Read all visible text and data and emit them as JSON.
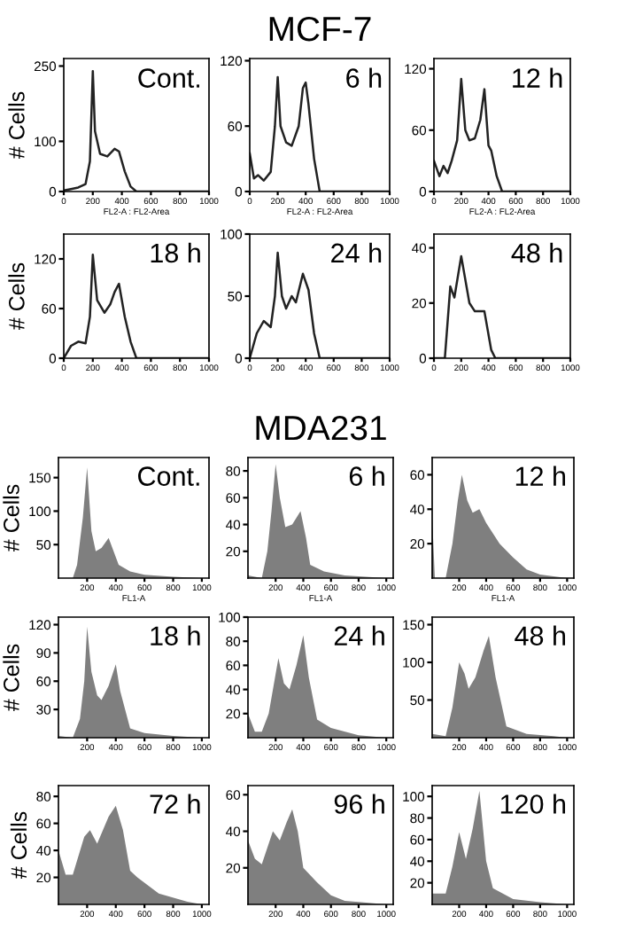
{
  "chart_data": [
    {
      "type": "line",
      "title": "Cont.",
      "ylabel": "# Cells",
      "xlabel": "FL2-A : FL2-Area",
      "color": "#222222",
      "x": [
        0,
        50,
        100,
        150,
        180,
        200,
        215,
        250,
        300,
        350,
        380,
        420,
        460,
        500,
        1000
      ],
      "values": [
        2,
        5,
        8,
        15,
        60,
        240,
        120,
        75,
        70,
        85,
        80,
        40,
        10,
        0,
        0
      ],
      "xlim": [
        0,
        1000
      ],
      "xticks": [
        0,
        200,
        400,
        600,
        800,
        1000
      ],
      "ylim": [
        0,
        265
      ],
      "yticks": [
        0,
        100,
        250
      ]
    },
    {
      "type": "line",
      "title": "6 h",
      "annotations": [
        "MCF-7"
      ],
      "xlabel": "FL2-A : FL2-Area",
      "color": "#222222",
      "x": [
        0,
        30,
        60,
        100,
        150,
        180,
        200,
        220,
        260,
        300,
        350,
        380,
        400,
        420,
        460,
        500,
        1000
      ],
      "values": [
        35,
        12,
        15,
        10,
        18,
        60,
        105,
        60,
        45,
        42,
        60,
        95,
        100,
        80,
        30,
        0,
        0
      ],
      "xlim": [
        0,
        1000
      ],
      "xticks": [
        0,
        200,
        400,
        600,
        800,
        1000
      ],
      "ylim": [
        0,
        122
      ],
      "yticks": [
        0,
        60,
        120
      ]
    },
    {
      "type": "line",
      "title": "12 h",
      "xlabel": "FL2-A : FL2-Area",
      "color": "#222222",
      "x": [
        0,
        40,
        70,
        100,
        130,
        170,
        200,
        230,
        260,
        300,
        340,
        370,
        400,
        420,
        460,
        500,
        1000
      ],
      "values": [
        30,
        15,
        25,
        18,
        30,
        50,
        110,
        60,
        50,
        52,
        70,
        100,
        45,
        40,
        15,
        0,
        0
      ],
      "xlim": [
        0,
        1000
      ],
      "xticks": [
        0,
        200,
        400,
        600,
        800,
        1000
      ],
      "ylim": [
        0,
        130
      ],
      "yticks": [
        0,
        60,
        120
      ]
    },
    {
      "type": "line",
      "title": "18 h",
      "ylabel": "# Cells",
      "color": "#222222",
      "x": [
        0,
        50,
        100,
        150,
        180,
        200,
        230,
        280,
        320,
        350,
        380,
        420,
        460,
        500,
        1000
      ],
      "values": [
        0,
        15,
        20,
        18,
        50,
        125,
        70,
        55,
        65,
        80,
        90,
        50,
        20,
        0,
        0
      ],
      "xlim": [
        0,
        1000
      ],
      "xticks": [
        0,
        200,
        400,
        600,
        800,
        1000
      ],
      "ylim": [
        0,
        150
      ],
      "yticks": [
        0,
        60,
        120
      ]
    },
    {
      "type": "line",
      "title": "24 h",
      "color": "#222222",
      "x": [
        0,
        50,
        100,
        150,
        180,
        200,
        230,
        260,
        300,
        330,
        380,
        420,
        460,
        500,
        1000
      ],
      "values": [
        0,
        20,
        30,
        25,
        50,
        85,
        50,
        40,
        50,
        45,
        68,
        55,
        20,
        0,
        0
      ],
      "xlim": [
        0,
        1000
      ],
      "xticks": [
        0,
        200,
        400,
        600,
        800,
        1000
      ],
      "ylim": [
        0,
        100
      ],
      "yticks": [
        0,
        50,
        100
      ]
    },
    {
      "type": "line",
      "title": "48 h",
      "color": "#222222",
      "x": [
        0,
        80,
        120,
        150,
        200,
        260,
        300,
        370,
        420,
        450,
        1000
      ],
      "values": [
        0,
        0,
        26,
        22,
        37,
        20,
        17,
        17,
        3,
        0,
        0
      ],
      "xlim": [
        0,
        1000
      ],
      "xticks": [
        0,
        200,
        400,
        600,
        800,
        1000
      ],
      "ylim": [
        0,
        45
      ],
      "yticks": [
        0,
        20,
        40
      ]
    },
    {
      "type": "area",
      "title": "Cont.",
      "ylabel": "# Cells",
      "xlabel": "FL1-A",
      "color": "#7f7f7f",
      "x": [
        0,
        100,
        130,
        170,
        200,
        230,
        260,
        300,
        350,
        420,
        500,
        600,
        800,
        1000
      ],
      "values": [
        0,
        0,
        20,
        90,
        165,
        70,
        40,
        45,
        60,
        20,
        10,
        5,
        2,
        0
      ],
      "xlim": [
        0,
        1050
      ],
      "xticks": [
        200,
        400,
        600,
        800,
        1000
      ],
      "ylim": [
        0,
        180
      ],
      "yticks": [
        50,
        100,
        150
      ]
    },
    {
      "type": "area",
      "title": "6 h",
      "annotations": [
        "MDA231"
      ],
      "xlabel": "FL1-A",
      "color": "#7f7f7f",
      "x": [
        0,
        100,
        140,
        170,
        200,
        230,
        270,
        320,
        380,
        420,
        450,
        550,
        700,
        1000
      ],
      "values": [
        2,
        0,
        20,
        50,
        85,
        60,
        38,
        40,
        50,
        30,
        10,
        5,
        2,
        0
      ],
      "xlim": [
        0,
        1050
      ],
      "xticks": [
        200,
        400,
        600,
        800,
        1000
      ],
      "ylim": [
        0,
        90
      ],
      "yticks": [
        20,
        40,
        60,
        80
      ]
    },
    {
      "type": "area",
      "title": "12 h",
      "xlabel": "FL1-A",
      "color": "#7f7f7f",
      "x": [
        0,
        20,
        100,
        150,
        190,
        220,
        260,
        300,
        350,
        400,
        500,
        600,
        700,
        800,
        1000
      ],
      "values": [
        35,
        0,
        0,
        20,
        45,
        60,
        45,
        38,
        40,
        32,
        20,
        12,
        5,
        2,
        0
      ],
      "xlim": [
        0,
        1050
      ],
      "xticks": [
        200,
        400,
        600,
        800,
        1000
      ],
      "ylim": [
        0,
        70
      ],
      "yticks": [
        20,
        40,
        60
      ]
    },
    {
      "type": "area",
      "title": "18 h",
      "ylabel": "# Cells",
      "color": "#7f7f7f",
      "x": [
        0,
        100,
        150,
        180,
        200,
        230,
        270,
        300,
        350,
        400,
        430,
        500,
        600,
        800,
        1000
      ],
      "values": [
        2,
        0,
        20,
        60,
        118,
        70,
        45,
        40,
        55,
        78,
        50,
        10,
        5,
        2,
        0
      ],
      "xlim": [
        0,
        1050
      ],
      "xticks": [
        200,
        400,
        600,
        800,
        1000
      ],
      "ylim": [
        0,
        128
      ],
      "yticks": [
        30,
        60,
        90,
        120
      ]
    },
    {
      "type": "area",
      "title": "24 h",
      "color": "#7f7f7f",
      "x": [
        0,
        50,
        100,
        150,
        220,
        260,
        300,
        350,
        400,
        440,
        500,
        600,
        800,
        1000
      ],
      "values": [
        20,
        5,
        5,
        20,
        66,
        45,
        40,
        60,
        85,
        50,
        15,
        8,
        2,
        0
      ],
      "xlim": [
        0,
        1050
      ],
      "xticks": [
        200,
        400,
        600,
        800,
        1000
      ],
      "ylim": [
        0,
        100
      ],
      "yticks": [
        20,
        40,
        60,
        80,
        100
      ]
    },
    {
      "type": "area",
      "title": "48 h",
      "color": "#7f7f7f",
      "x": [
        0,
        100,
        150,
        200,
        240,
        270,
        320,
        380,
        420,
        470,
        550,
        700,
        900,
        1000
      ],
      "values": [
        5,
        2,
        40,
        100,
        85,
        65,
        80,
        115,
        135,
        80,
        15,
        5,
        2,
        0
      ],
      "xlim": [
        0,
        1050
      ],
      "xticks": [
        200,
        400,
        600,
        800,
        1000
      ],
      "ylim": [
        0,
        160
      ],
      "yticks": [
        50,
        100,
        150
      ]
    },
    {
      "type": "area",
      "title": "72 h",
      "ylabel": "# Cells",
      "color": "#7f7f7f",
      "x": [
        0,
        50,
        100,
        180,
        220,
        270,
        350,
        400,
        450,
        500,
        550,
        700,
        900,
        1000
      ],
      "values": [
        40,
        22,
        22,
        50,
        55,
        45,
        65,
        73,
        55,
        25,
        20,
        8,
        2,
        0
      ],
      "xlim": [
        0,
        1050
      ],
      "xticks": [
        200,
        400,
        600,
        800,
        1000
      ],
      "ylim": [
        0,
        88
      ],
      "yticks": [
        20,
        40,
        60,
        80
      ]
    },
    {
      "type": "area",
      "title": "96 h",
      "color": "#7f7f7f",
      "x": [
        0,
        50,
        100,
        180,
        230,
        280,
        320,
        360,
        400,
        500,
        600,
        700,
        1000
      ],
      "values": [
        35,
        25,
        22,
        40,
        35,
        45,
        52,
        40,
        20,
        12,
        5,
        2,
        0
      ],
      "xlim": [
        0,
        1050
      ],
      "xticks": [
        200,
        400,
        600,
        800,
        1000
      ],
      "ylim": [
        0,
        65
      ],
      "yticks": [
        20,
        40,
        60
      ]
    },
    {
      "type": "area",
      "title": "120 h",
      "color": "#7f7f7f",
      "x": [
        0,
        100,
        150,
        200,
        250,
        300,
        350,
        400,
        450,
        600,
        800,
        1000
      ],
      "values": [
        10,
        10,
        35,
        67,
        42,
        70,
        105,
        40,
        15,
        5,
        2,
        0
      ],
      "xlim": [
        0,
        1050
      ],
      "xticks": [
        200,
        400,
        600,
        800,
        1000
      ],
      "ylim": [
        0,
        110
      ],
      "yticks": [
        20,
        40,
        60,
        80,
        100
      ]
    }
  ]
}
